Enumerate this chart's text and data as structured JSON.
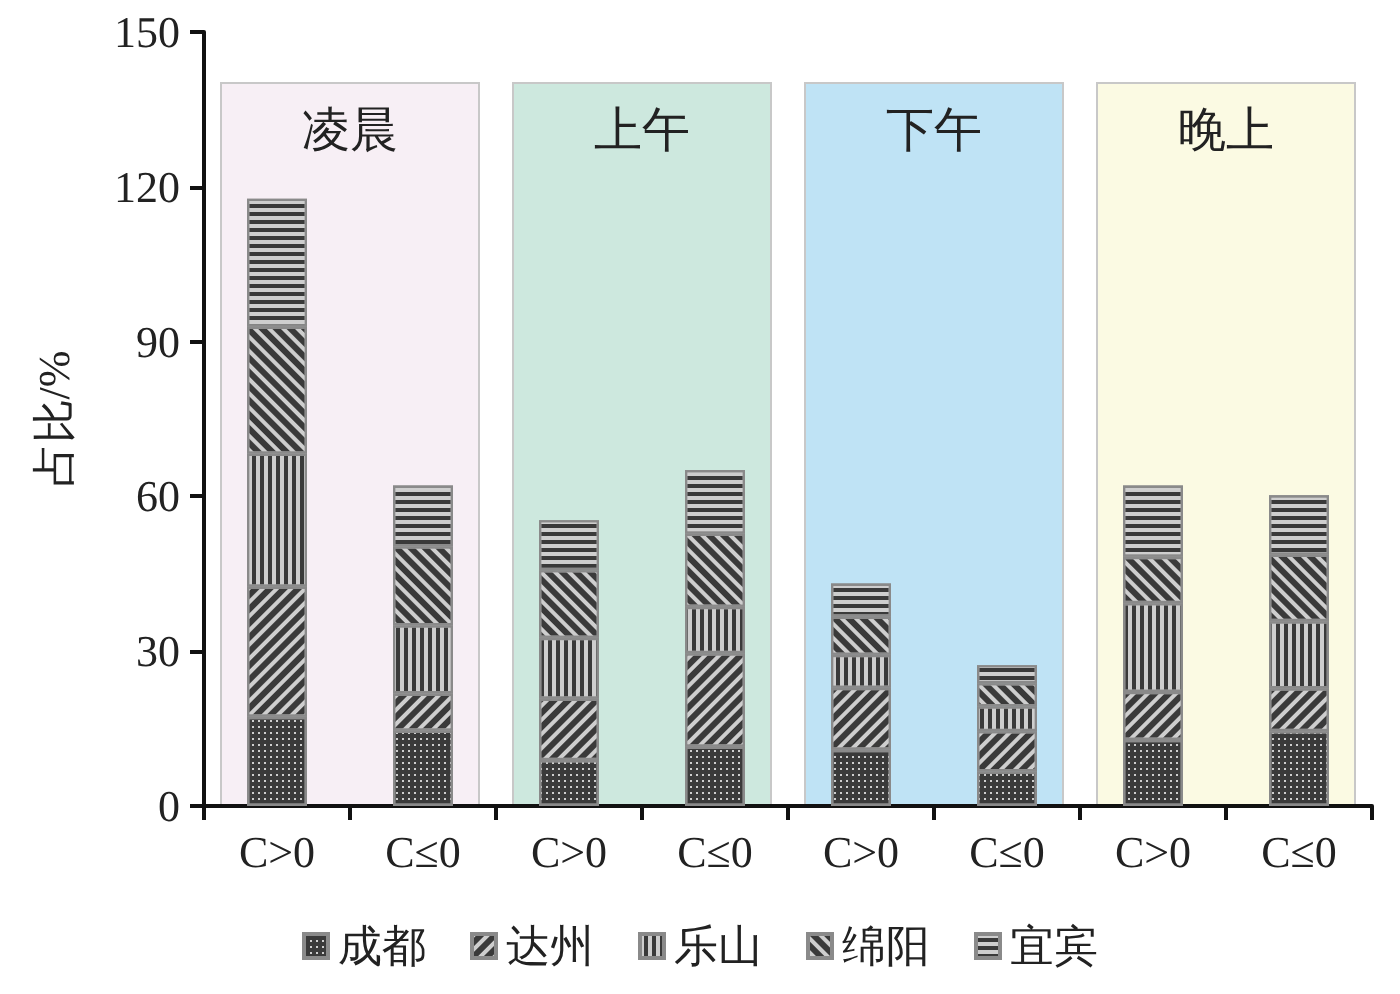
{
  "chart_data": {
    "type": "bar",
    "stacked": true,
    "ylabel": "占比/%",
    "categories": [
      "C>0",
      "C≤0",
      "C>0",
      "C≤0",
      "C>0",
      "C≤0",
      "C>0",
      "C≤0"
    ],
    "series": [
      {
        "name": "成都",
        "color": "#3a3a3a",
        "values": [
          17.3,
          14.6,
          8.9,
          11.5,
          10.9,
          6.7,
          12.8,
          14.5
        ]
      },
      {
        "name": "达州",
        "color": "#3a3a3a",
        "values": [
          25.2,
          7.2,
          11.9,
          18.1,
          12.0,
          7.8,
          9.3,
          8.3
        ]
      },
      {
        "name": "乐山",
        "color": "#3a3a3a",
        "values": [
          25.8,
          13.2,
          11.8,
          9.0,
          6.4,
          4.8,
          17.2,
          13.0
        ]
      },
      {
        "name": "绵阳",
        "color": "#3a3a3a",
        "values": [
          24.6,
          15.3,
          13.1,
          14.2,
          7.4,
          4.5,
          9.0,
          12.9
        ]
      },
      {
        "name": "宜宾",
        "color": "#3a3a3a",
        "values": [
          24.8,
          11.8,
          9.7,
          12.3,
          6.4,
          3.5,
          13.8,
          11.5
        ]
      }
    ],
    "ylim": [
      0,
      150
    ],
    "yticks": [
      0,
      30,
      60,
      90,
      120,
      150
    ],
    "grid": false,
    "legend": "bottom",
    "annotations": [
      "凌晨",
      "上午",
      "下午",
      "晚上"
    ]
  }
}
